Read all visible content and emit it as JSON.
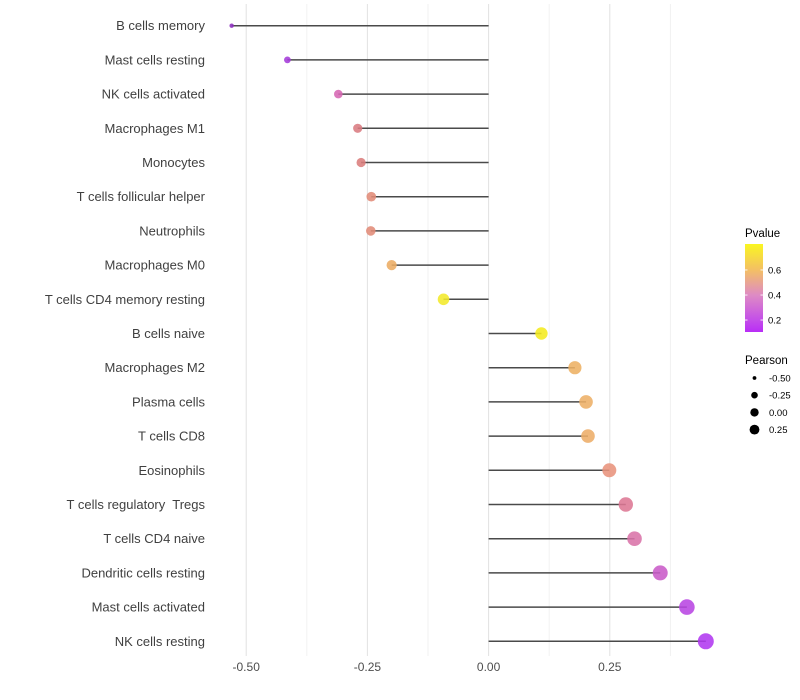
{
  "figure": {
    "background": "#ffffff",
    "grid_major_color": "#e2e2e2",
    "grid_minor_color": "#f0f0f0",
    "stem_color": "#4a4a4a",
    "axis_text_color": "#4d4d4d"
  },
  "chart_data": {
    "type": "lollipop",
    "title": "",
    "xlabel": "",
    "ylabel": "",
    "x_axis": {
      "range": [
        -0.565,
        0.475
      ],
      "ticks_major": [
        -0.5,
        -0.25,
        0.0,
        0.25
      ],
      "tick_labels": [
        "-0.50",
        "-0.25",
        "0.00",
        "0.25"
      ],
      "ticks_minor": [
        -0.375,
        -0.125,
        0.125,
        0.375
      ],
      "grid": "vertical-only",
      "baseline": 0
    },
    "categories": [
      "B cells memory",
      "Mast cells resting",
      "NK cells activated",
      "Macrophages M1",
      "Monocytes",
      "T cells follicular helper",
      "Neutrophils",
      "Macrophages M0",
      "T cells CD4 memory resting",
      "B cells naive",
      "Macrophages M2",
      "Plasma cells",
      "T cells CD8",
      "Eosinophils",
      "T cells regulatory  Tregs",
      "T cells CD4 naive",
      "Dendritic cells resting",
      "Mast cells activated",
      "NK cells resting"
    ],
    "series": [
      {
        "name": "Pearson",
        "points": [
          {
            "label": "B cells memory",
            "value": -0.53,
            "color": "#8c2dbe",
            "radius": 2.2
          },
          {
            "label": "Mast cells resting",
            "value": -0.415,
            "color": "#a43bd9",
            "radius": 3.4
          },
          {
            "label": "NK cells activated",
            "value": -0.31,
            "color": "#d667b3",
            "radius": 4.3
          },
          {
            "label": "Macrophages M1",
            "value": -0.27,
            "color": "#da7b81",
            "radius": 4.6
          },
          {
            "label": "Monocytes",
            "value": -0.263,
            "color": "#db7d7c",
            "radius": 4.6
          },
          {
            "label": "T cells follicular helper",
            "value": -0.242,
            "color": "#e18b77",
            "radius": 4.8
          },
          {
            "label": "Neutrophils",
            "value": -0.243,
            "color": "#e18b77",
            "radius": 4.8
          },
          {
            "label": "Macrophages M0",
            "value": -0.2,
            "color": "#ecac63",
            "radius": 5.1
          },
          {
            "label": "T cells CD4 memory resting",
            "value": -0.093,
            "color": "#f2e92a",
            "radius": 5.8
          },
          {
            "label": "B cells naive",
            "value": 0.109,
            "color": "#f4eb1f",
            "radius": 6.2
          },
          {
            "label": "Macrophages M2",
            "value": 0.178,
            "color": "#edb163",
            "radius": 6.6
          },
          {
            "label": "Plasma cells",
            "value": 0.201,
            "color": "#edaf66",
            "radius": 6.8
          },
          {
            "label": "T cells CD8",
            "value": 0.205,
            "color": "#edad68",
            "radius": 6.8
          },
          {
            "label": "Eosinophils",
            "value": 0.249,
            "color": "#e8937c",
            "radius": 7.0
          },
          {
            "label": "T cells regulatory  Tregs",
            "value": 0.283,
            "color": "#dd7794",
            "radius": 7.2
          },
          {
            "label": "T cells CD4 naive",
            "value": 0.301,
            "color": "#d973a8",
            "radius": 7.3
          },
          {
            "label": "Dendritic cells resting",
            "value": 0.354,
            "color": "#c95bc8",
            "radius": 7.5
          },
          {
            "label": "Mast cells activated",
            "value": 0.409,
            "color": "#b845e2",
            "radius": 7.8
          },
          {
            "label": "NK cells resting",
            "value": 0.448,
            "color": "#b138f0",
            "radius": 8.0
          }
        ]
      }
    ],
    "legend": {
      "position": "right",
      "pvalue": {
        "title": "Pvalue",
        "gradient": [
          {
            "pos": 0.0,
            "color": "#faf621"
          },
          {
            "pos": 0.3,
            "color": "#f3be66"
          },
          {
            "pos": 0.58,
            "color": "#de8bc4"
          },
          {
            "pos": 0.86,
            "color": "#c44fe8"
          },
          {
            "pos": 1.0,
            "color": "#b92df6"
          }
        ],
        "ticks": [
          {
            "label": "0.6",
            "pos": 0.295
          },
          {
            "label": "0.4",
            "pos": 0.58
          },
          {
            "label": "0.2",
            "pos": 0.864
          }
        ]
      },
      "pearson": {
        "title": "Pearson",
        "items": [
          {
            "label": "-0.50",
            "radius": 1.9
          },
          {
            "label": "-0.25",
            "radius": 3.3
          },
          {
            "label": "0.00",
            "radius": 4.2
          },
          {
            "label": "0.25",
            "radius": 4.9
          }
        ]
      }
    }
  }
}
